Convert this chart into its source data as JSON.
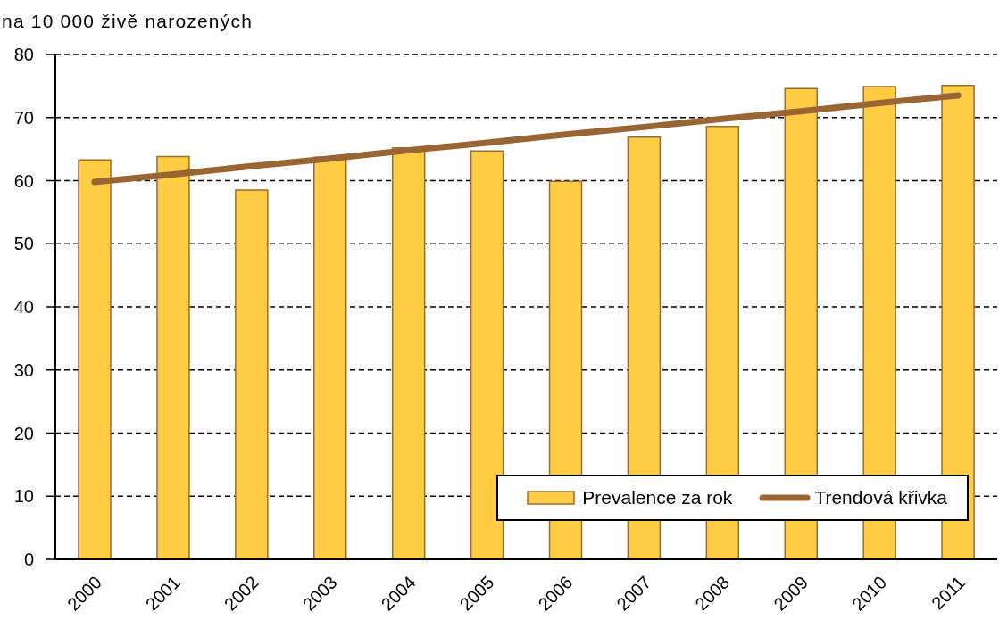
{
  "chart_data": {
    "type": "bar",
    "ylabel": "na 10 000 živě narozených",
    "categories": [
      "2000",
      "2001",
      "2002",
      "2003",
      "2004",
      "2005",
      "2006",
      "2007",
      "2008",
      "2009",
      "2010",
      "2011"
    ],
    "series": [
      {
        "name": "Prevalence za rok",
        "color": "#ffcc44",
        "values": [
          63.3,
          63.8,
          58.5,
          63.7,
          65.2,
          64.7,
          59.9,
          66.9,
          68.6,
          74.6,
          74.9,
          75.1
        ]
      },
      {
        "name": "Trendová křivka",
        "type": "line",
        "color": "#996633",
        "values": [
          59.8,
          61.0,
          62.3,
          63.5,
          64.8,
          66.0,
          67.3,
          68.5,
          69.8,
          71.0,
          72.3,
          73.5
        ]
      }
    ],
    "ylim": [
      0,
      80
    ],
    "yticks": [
      0,
      10,
      20,
      30,
      40,
      50,
      60,
      70,
      80
    ],
    "grid": "y",
    "legend": "bottom right",
    "marker": "none"
  }
}
